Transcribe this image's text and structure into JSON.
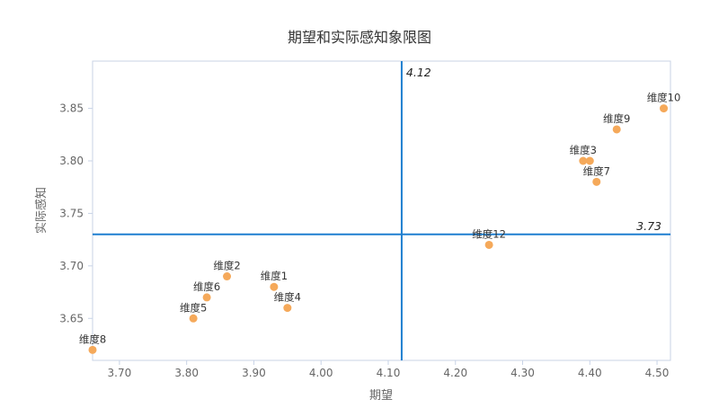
{
  "chart_data": {
    "type": "scatter",
    "title": "期望和实际感知象限图",
    "xlabel": "期望",
    "ylabel": "实际感知",
    "xlim": [
      3.66,
      4.52
    ],
    "ylim": [
      3.61,
      3.895
    ],
    "xticks": [
      "3.70",
      "3.80",
      "3.90",
      "4.00",
      "4.10",
      "4.20",
      "4.30",
      "4.40",
      "4.50"
    ],
    "yticks": [
      "3.65",
      "3.70",
      "3.75",
      "3.80",
      "3.85"
    ],
    "points": [
      {
        "label": "维度1",
        "x": 3.93,
        "y": 3.68
      },
      {
        "label": "维度2",
        "x": 3.86,
        "y": 3.69
      },
      {
        "label": "维度3",
        "x": 4.39,
        "y": 3.8
      },
      {
        "label": "维度4",
        "x": 3.95,
        "y": 3.66
      },
      {
        "label": "维度5",
        "x": 3.81,
        "y": 3.65
      },
      {
        "label": "维度6",
        "x": 3.83,
        "y": 3.67
      },
      {
        "label": "维度7",
        "x": 4.41,
        "y": 3.78
      },
      {
        "label": "维度8",
        "x": 3.66,
        "y": 3.62
      },
      {
        "label": "维度9",
        "x": 4.44,
        "y": 3.83
      },
      {
        "label": "维度10",
        "x": 4.51,
        "y": 3.85
      },
      {
        "label": "维度12",
        "x": 4.25,
        "y": 3.72
      },
      {
        "label": "",
        "x": 4.4,
        "y": 3.8
      }
    ],
    "reference_lines": {
      "vertical": {
        "value": 4.12,
        "label": "4.12"
      },
      "horizontal": {
        "value": 3.73,
        "label": "3.73"
      }
    },
    "grid": false,
    "colors": {
      "points": "#f5a95a",
      "reference": "#1f7fd0",
      "border": "#c8d3e6"
    }
  }
}
